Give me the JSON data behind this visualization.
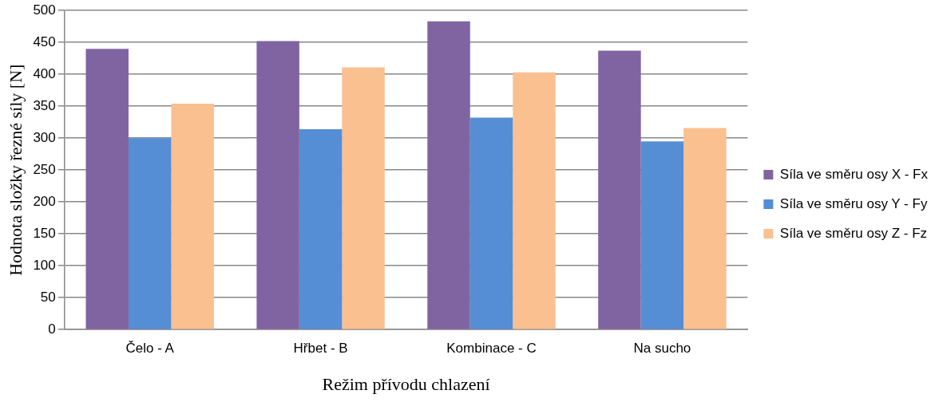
{
  "chart_data": {
    "type": "bar",
    "xlabel": "Režim přívodu chlazení",
    "ylabel": "Hodnota složky řezné síly [N]",
    "categories": [
      "Čelo - A",
      "Hřbet - B",
      "Kombinace - C",
      "Na sucho"
    ],
    "series": [
      {
        "name": "Síla ve směru osy X - Fx",
        "color": "#8064a2",
        "values": [
          440,
          452,
          483,
          437
        ]
      },
      {
        "name": "Síla ve směru osy Y - Fy",
        "color": "#558ed5",
        "values": [
          300,
          314,
          332,
          295
        ]
      },
      {
        "name": "Síla ve směru osy Z - Fz",
        "color": "#fac090",
        "values": [
          354,
          411,
          403,
          316
        ]
      }
    ],
    "ylim": [
      0,
      500
    ],
    "yticks": [
      0,
      50,
      100,
      150,
      200,
      250,
      300,
      350,
      400,
      450,
      500
    ],
    "grid": "y",
    "legend": "right"
  }
}
